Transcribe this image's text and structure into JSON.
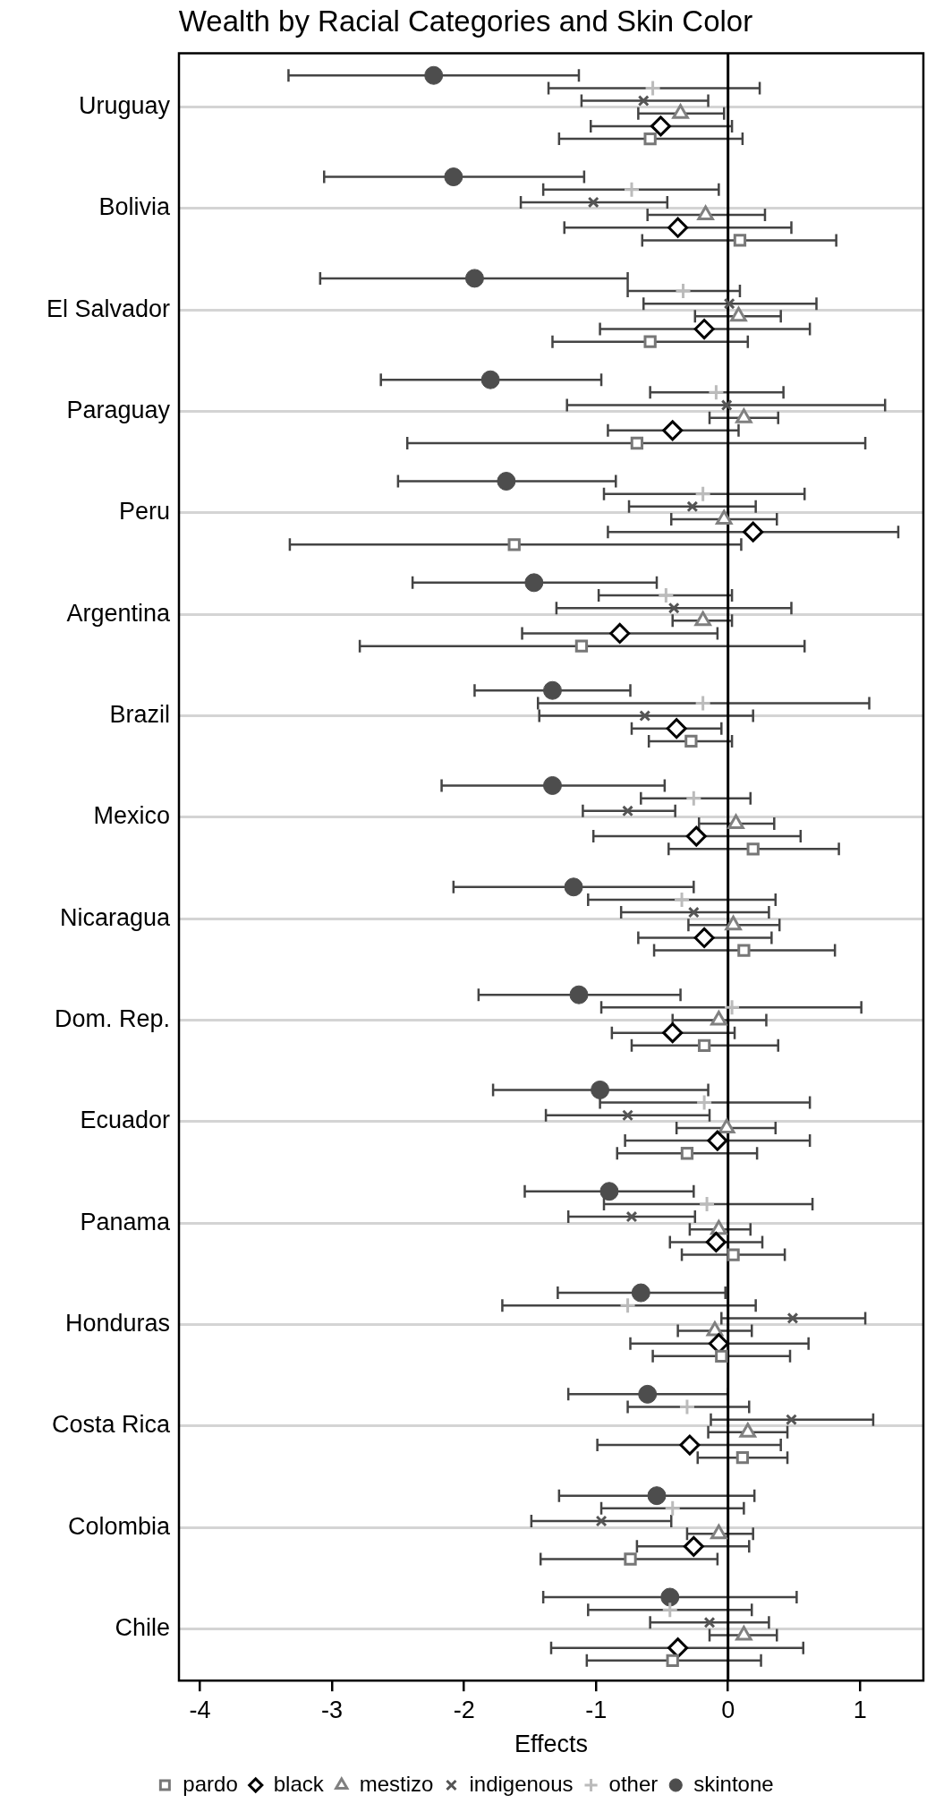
{
  "chart_data": {
    "type": "scatter",
    "orientation": "horizontal",
    "title": "Wealth by Racial Categories and Skin Color",
    "xlabel": "Effects",
    "categories": [
      "Uruguay",
      "Bolivia",
      "El Salvador",
      "Paraguay",
      "Peru",
      "Argentina",
      "Brazil",
      "Mexico",
      "Nicaragua",
      "Dom. Rep.",
      "Ecuador",
      "Panama",
      "Honduras",
      "Costa Rica",
      "Colombia",
      "Chile"
    ],
    "xlim": [
      -4.16,
      1.48
    ],
    "xticks": [
      -4,
      -3,
      -2,
      -1,
      0,
      1
    ],
    "grid": "y",
    "legend": "bottom",
    "ref_lines": [
      {
        "axis": "x",
        "value": 0,
        "color": "#000000"
      }
    ],
    "series": [
      {
        "name": "pardo",
        "color": "#777777",
        "marker": "square",
        "values": [
          -0.59,
          0.09,
          -0.59,
          -0.69,
          -1.62,
          -1.11,
          -0.28,
          0.19,
          0.12,
          -0.18,
          -0.31,
          0.04,
          -0.05,
          0.11,
          -0.74,
          -0.42
        ],
        "errors": [
          [
            -1.28,
            0.11
          ],
          [
            -0.65,
            0.82
          ],
          [
            -1.33,
            0.15
          ],
          [
            -2.43,
            1.04
          ],
          [
            -3.32,
            0.1
          ],
          [
            -2.79,
            0.58
          ],
          [
            -0.6,
            0.03
          ],
          [
            -0.45,
            0.84
          ],
          [
            -0.56,
            0.81
          ],
          [
            -0.73,
            0.38
          ],
          [
            -0.84,
            0.22
          ],
          [
            -0.35,
            0.43
          ],
          [
            -0.57,
            0.47
          ],
          [
            -0.23,
            0.45
          ],
          [
            -1.42,
            -0.08
          ],
          [
            -1.07,
            0.25
          ]
        ]
      },
      {
        "name": "black",
        "color": "#000000",
        "marker": "diamond",
        "values": [
          -0.51,
          -0.38,
          -0.18,
          -0.42,
          0.19,
          -0.82,
          -0.39,
          -0.24,
          -0.18,
          -0.42,
          -0.08,
          -0.09,
          -0.07,
          -0.29,
          -0.26,
          -0.38
        ],
        "errors": [
          [
            -1.04,
            0.03
          ],
          [
            -1.24,
            0.48
          ],
          [
            -0.97,
            0.62
          ],
          [
            -0.91,
            0.08
          ],
          [
            -0.91,
            1.29
          ],
          [
            -1.56,
            -0.08
          ],
          [
            -0.73,
            -0.05
          ],
          [
            -1.02,
            0.55
          ],
          [
            -0.68,
            0.33
          ],
          [
            -0.88,
            0.05
          ],
          [
            -0.78,
            0.62
          ],
          [
            -0.44,
            0.26
          ],
          [
            -0.74,
            0.61
          ],
          [
            -0.99,
            0.4
          ],
          [
            -0.69,
            0.16
          ],
          [
            -1.34,
            0.57
          ]
        ]
      },
      {
        "name": "mestizo",
        "color": "#808080",
        "marker": "triangle",
        "values": [
          -0.36,
          -0.17,
          0.08,
          0.12,
          -0.03,
          -0.19,
          null,
          0.06,
          0.04,
          -0.07,
          -0.01,
          -0.07,
          -0.1,
          0.15,
          -0.07,
          0.12
        ],
        "errors": [
          [
            -0.68,
            -0.03
          ],
          [
            -0.61,
            0.28
          ],
          [
            -0.25,
            0.4
          ],
          [
            -0.14,
            0.38
          ],
          [
            -0.43,
            0.37
          ],
          [
            -0.42,
            0.03
          ],
          null,
          [
            -0.22,
            0.35
          ],
          [
            -0.3,
            0.39
          ],
          [
            -0.42,
            0.29
          ],
          [
            -0.39,
            0.36
          ],
          [
            -0.29,
            0.17
          ],
          [
            -0.38,
            0.18
          ],
          [
            -0.15,
            0.45
          ],
          [
            -0.31,
            0.19
          ],
          [
            -0.14,
            0.37
          ]
        ]
      },
      {
        "name": "indigenous",
        "color": "#555555",
        "marker": "x",
        "values": [
          -0.64,
          -1.02,
          0.01,
          -0.01,
          -0.27,
          -0.41,
          -0.63,
          -0.76,
          -0.26,
          null,
          -0.76,
          -0.73,
          0.49,
          0.48,
          -0.96,
          -0.14
        ],
        "errors": [
          [
            -1.11,
            -0.15
          ],
          [
            -1.57,
            -0.46
          ],
          [
            -0.64,
            0.67
          ],
          [
            -1.22,
            1.19
          ],
          [
            -0.75,
            0.21
          ],
          [
            -1.3,
            0.48
          ],
          [
            -1.43,
            0.19
          ],
          [
            -1.1,
            -0.4
          ],
          [
            -0.81,
            0.31
          ],
          null,
          [
            -1.38,
            -0.14
          ],
          [
            -1.21,
            -0.25
          ],
          [
            -0.05,
            1.04
          ],
          [
            -0.13,
            1.1
          ],
          [
            -1.49,
            -0.43
          ],
          [
            -0.59,
            0.31
          ]
        ]
      },
      {
        "name": "other",
        "color": "#bbbbbb",
        "marker": "cross",
        "values": [
          -0.57,
          -0.73,
          -0.34,
          -0.09,
          -0.19,
          -0.47,
          -0.19,
          -0.26,
          -0.35,
          0.03,
          -0.18,
          -0.16,
          -0.76,
          -0.31,
          -0.42,
          -0.44
        ],
        "errors": [
          [
            -1.36,
            0.24
          ],
          [
            -1.4,
            -0.07
          ],
          [
            -0.76,
            0.09
          ],
          [
            -0.59,
            0.42
          ],
          [
            -0.94,
            0.58
          ],
          [
            -0.98,
            0.03
          ],
          [
            -1.44,
            1.07
          ],
          [
            -0.66,
            0.17
          ],
          [
            -1.06,
            0.36
          ],
          [
            -0.96,
            1.01
          ],
          [
            -0.97,
            0.62
          ],
          [
            -0.94,
            0.64
          ],
          [
            -1.71,
            0.21
          ],
          [
            -0.76,
            0.16
          ],
          [
            -0.96,
            0.12
          ],
          [
            -1.06,
            0.18
          ]
        ]
      },
      {
        "name": "skintone",
        "color": "#4d4d4d",
        "marker": "circle",
        "values": [
          -2.23,
          -2.08,
          -1.92,
          -1.8,
          -1.68,
          -1.47,
          -1.33,
          -1.33,
          -1.17,
          -1.13,
          -0.97,
          -0.9,
          -0.66,
          -0.61,
          -0.54,
          -0.44
        ],
        "errors": [
          [
            -3.33,
            -1.13
          ],
          [
            -3.06,
            -1.09
          ],
          [
            -3.09,
            -0.76
          ],
          [
            -2.63,
            -0.96
          ],
          [
            -2.5,
            -0.85
          ],
          [
            -2.39,
            -0.54
          ],
          [
            -1.92,
            -0.74
          ],
          [
            -2.17,
            -0.48
          ],
          [
            -2.08,
            -0.26
          ],
          [
            -1.89,
            -0.36
          ],
          [
            -1.78,
            -0.15
          ],
          [
            -1.54,
            -0.26
          ],
          [
            -1.29,
            -0.02
          ],
          [
            -1.21,
            0.0
          ],
          [
            -1.28,
            0.2
          ],
          [
            -1.4,
            0.52
          ]
        ]
      }
    ]
  }
}
